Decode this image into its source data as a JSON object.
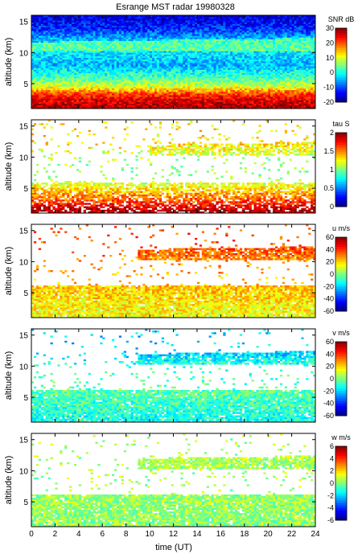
{
  "title": "Esrange MST radar 19980328",
  "xlabel": "time (UT)",
  "colors": {
    "background": "#ffffff",
    "axis": "#000000"
  },
  "chart_data": [
    {
      "type": "heatmap",
      "ylabel": "altitude (km)",
      "colorbar_label": "SNR dB",
      "colorbar_ticks": [
        "30",
        "20",
        "10",
        "0",
        "-10",
        "-20"
      ],
      "colorbar_range": [
        -20,
        30
      ],
      "x_ticks": [
        "0",
        "2",
        "4",
        "6",
        "8",
        "10",
        "12",
        "14",
        "16",
        "18",
        "20",
        "22",
        "24"
      ],
      "y_ticks": [
        "5",
        "10",
        "15"
      ],
      "xlim": [
        0,
        24
      ],
      "ylim": [
        1,
        16
      ],
      "profile": [
        {
          "altitude_km": 1.5,
          "value": 27
        },
        {
          "altitude_km": 2.5,
          "value": 25
        },
        {
          "altitude_km": 3.5,
          "value": 20
        },
        {
          "altitude_km": 4.5,
          "value": 10
        },
        {
          "altitude_km": 6,
          "value": 2
        },
        {
          "altitude_km": 8,
          "value": -5
        },
        {
          "altitude_km": 10,
          "value": -2
        },
        {
          "altitude_km": 12,
          "value": -4
        },
        {
          "altitude_km": 14,
          "value": -12
        },
        {
          "altitude_km": 15.5,
          "value": -15
        }
      ],
      "layer_km": {
        "start": 10.8,
        "end": 11.8
      },
      "coverage": "full"
    },
    {
      "type": "heatmap",
      "ylabel": "altitude (km)",
      "colorbar_label": "tau S",
      "colorbar_ticks": [
        "2",
        "1.5",
        "1",
        "0.5",
        "0"
      ],
      "colorbar_range": [
        0,
        2
      ],
      "x_ticks": [
        "0",
        "2",
        "4",
        "6",
        "8",
        "10",
        "12",
        "14",
        "16",
        "18",
        "20",
        "22",
        "24"
      ],
      "y_ticks": [
        "5",
        "10",
        "15"
      ],
      "xlim": [
        0,
        24
      ],
      "ylim": [
        1,
        16
      ],
      "profile": [
        {
          "altitude_km": 1.5,
          "value": 1.9
        },
        {
          "altitude_km": 3,
          "value": 1.6
        },
        {
          "altitude_km": 5,
          "value": 1.3
        },
        {
          "altitude_km": 7,
          "value": 1.0
        },
        {
          "altitude_km": 10,
          "value": 1.1
        },
        {
          "altitude_km": 12,
          "value": 1.3
        }
      ],
      "layer_km": {
        "start": 10.8,
        "end": 11.8
      },
      "coverage": "sparse"
    },
    {
      "type": "heatmap",
      "ylabel": "altitude (km)",
      "colorbar_label": "u m/s",
      "colorbar_ticks": [
        "60",
        "40",
        "20",
        "0",
        "-20",
        "-40",
        "-60"
      ],
      "colorbar_range": [
        -60,
        60
      ],
      "x_ticks": [
        "0",
        "2",
        "4",
        "6",
        "8",
        "10",
        "12",
        "14",
        "16",
        "18",
        "20",
        "22",
        "24"
      ],
      "y_ticks": [
        "5",
        "10",
        "15"
      ],
      "xlim": [
        0,
        24
      ],
      "ylim": [
        1,
        16
      ],
      "profile": [
        {
          "altitude_km": 1.5,
          "value": 14
        },
        {
          "altitude_km": 4,
          "value": 18
        },
        {
          "altitude_km": 6,
          "value": 22
        },
        {
          "altitude_km": 10,
          "value": 28
        },
        {
          "altitude_km": 12,
          "value": 35
        }
      ],
      "layer_km": {
        "start": 10.8,
        "end": 11.8
      },
      "coverage": "medium"
    },
    {
      "type": "heatmap",
      "ylabel": "altitude (km)",
      "colorbar_label": "v m/s",
      "colorbar_ticks": [
        "60",
        "40",
        "20",
        "0",
        "-20",
        "-40",
        "-60"
      ],
      "colorbar_range": [
        -60,
        60
      ],
      "x_ticks": [
        "0",
        "2",
        "4",
        "6",
        "8",
        "10",
        "12",
        "14",
        "16",
        "18",
        "20",
        "22",
        "24"
      ],
      "y_ticks": [
        "5",
        "10",
        "15"
      ],
      "xlim": [
        0,
        24
      ],
      "ylim": [
        1,
        16
      ],
      "profile": [
        {
          "altitude_km": 1.5,
          "value": -12
        },
        {
          "altitude_km": 4,
          "value": -8
        },
        {
          "altitude_km": 6,
          "value": -5
        },
        {
          "altitude_km": 10,
          "value": -10
        },
        {
          "altitude_km": 12,
          "value": -20
        }
      ],
      "layer_km": {
        "start": 10.8,
        "end": 11.8
      },
      "coverage": "medium"
    },
    {
      "type": "heatmap",
      "ylabel": "altitude (km)",
      "colorbar_label": "w m/s",
      "colorbar_ticks": [
        "6",
        "4",
        "2",
        "0",
        "-2",
        "-4",
        "-6"
      ],
      "colorbar_range": [
        -6,
        6
      ],
      "x_ticks": [
        "0",
        "2",
        "4",
        "6",
        "8",
        "10",
        "12",
        "14",
        "16",
        "18",
        "20",
        "22",
        "24"
      ],
      "y_ticks": [
        "5",
        "10",
        "15"
      ],
      "xlim": [
        0,
        24
      ],
      "ylim": [
        1,
        16
      ],
      "profile": [
        {
          "altitude_km": 1.5,
          "value": 0.2
        },
        {
          "altitude_km": 5,
          "value": 0.3
        },
        {
          "altitude_km": 10,
          "value": 0.4
        },
        {
          "altitude_km": 12,
          "value": 0.5
        }
      ],
      "layer_km": {
        "start": 10.8,
        "end": 11.8
      },
      "coverage": "medium"
    }
  ]
}
